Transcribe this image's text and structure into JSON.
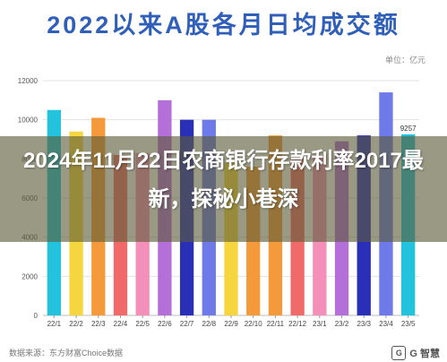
{
  "chart_data": {
    "type": "bar",
    "title": "2022以来A股各月日均成交额",
    "unit_label": "单位：亿元",
    "categories": [
      "22/1",
      "22/2",
      "22/3",
      "22/4",
      "22/5",
      "22/6",
      "22/7",
      "22/8",
      "22/9",
      "22/10",
      "22/11",
      "22/12",
      "23/1",
      "23/2",
      "23/3",
      "23/4",
      "23/5"
    ],
    "values": [
      10500,
      9400,
      10100,
      8200,
      8300,
      11000,
      10000,
      10000,
      7800,
      7600,
      9200,
      8000,
      8200,
      8900,
      9200,
      11400,
      9257
    ],
    "colors": [
      "#23c3dd",
      "#f6d63f",
      "#f59a3a",
      "#f06a6a",
      "#f38fb9",
      "#b46fd8",
      "#2a2fb8",
      "#6d7ae8",
      "#f6d63f",
      "#f59a3a",
      "#f59a3a",
      "#f06a6a",
      "#f38fb9",
      "#b46fd8",
      "#2a2fb8",
      "#6d7ae8",
      "#23c3dd"
    ],
    "data_labels": [
      {
        "index": 16,
        "text": "9257"
      }
    ],
    "ylim": [
      0,
      12000
    ],
    "yticks": [
      0,
      2000,
      4000,
      6000,
      8000,
      10000,
      12000
    ],
    "grid": true,
    "xlabel": "",
    "ylabel": ""
  },
  "overlay": {
    "headline": "2024年11月22日农商银行存款利率2017最新，探秘小巷深"
  },
  "source": "数据来源：东方财富Choice数据",
  "watermark": "G 智慧"
}
